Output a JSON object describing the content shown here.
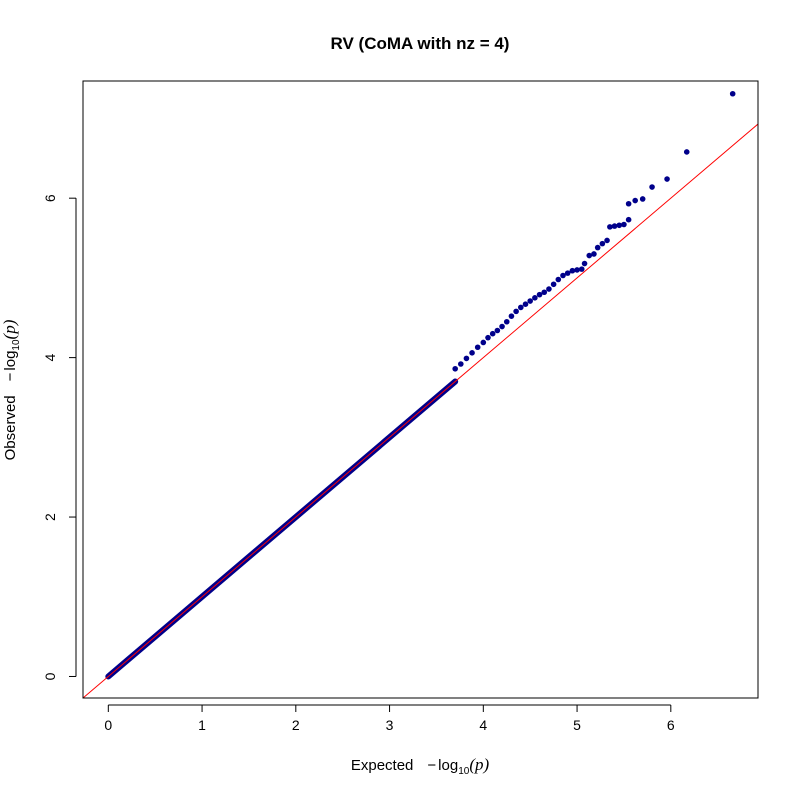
{
  "chart_data": {
    "type": "scatter",
    "title": "RV (CoMA with  nz = 4)",
    "xlabel": {
      "prefix": "Expected",
      "minus": "−",
      "log": "log",
      "base": "10",
      "open": "(",
      "var": "p",
      "close": ")"
    },
    "ylabel": {
      "prefix": "Observed",
      "minus": "−",
      "log": "log",
      "base": "10",
      "open": "(",
      "var": "p",
      "close": ")"
    },
    "xlim": [
      -0.27,
      6.93
    ],
    "ylim": [
      -0.27,
      7.47
    ],
    "x_ticks": [
      0,
      1,
      2,
      3,
      4,
      5,
      6
    ],
    "y_ticks": [
      0,
      2,
      4,
      6
    ],
    "point_color": "#00008B",
    "line_color": "#FF0000",
    "reference_line": {
      "intercept": 0,
      "slope": 1
    },
    "dense_segment": {
      "x_start": 0.0,
      "x_end": 3.7,
      "relation": "y = x"
    },
    "points": [
      [
        3.7,
        3.86
      ],
      [
        3.76,
        3.92
      ],
      [
        3.82,
        3.99
      ],
      [
        3.88,
        4.06
      ],
      [
        3.94,
        4.13
      ],
      [
        4.0,
        4.19
      ],
      [
        4.05,
        4.25
      ],
      [
        4.1,
        4.3
      ],
      [
        4.15,
        4.34
      ],
      [
        4.2,
        4.39
      ],
      [
        4.25,
        4.45
      ],
      [
        4.3,
        4.52
      ],
      [
        4.35,
        4.58
      ],
      [
        4.4,
        4.63
      ],
      [
        4.45,
        4.67
      ],
      [
        4.5,
        4.71
      ],
      [
        4.55,
        4.75
      ],
      [
        4.6,
        4.79
      ],
      [
        4.65,
        4.82
      ],
      [
        4.7,
        4.86
      ],
      [
        4.75,
        4.92
      ],
      [
        4.8,
        4.98
      ],
      [
        4.85,
        5.03
      ],
      [
        4.9,
        5.06
      ],
      [
        4.95,
        5.09
      ],
      [
        5.0,
        5.1
      ],
      [
        5.05,
        5.11
      ],
      [
        5.08,
        5.18
      ],
      [
        5.13,
        5.28
      ],
      [
        5.18,
        5.3
      ],
      [
        5.22,
        5.38
      ],
      [
        5.27,
        5.43
      ],
      [
        5.32,
        5.47
      ],
      [
        5.35,
        5.64
      ],
      [
        5.4,
        5.65
      ],
      [
        5.45,
        5.66
      ],
      [
        5.5,
        5.67
      ],
      [
        5.55,
        5.73
      ],
      [
        5.55,
        5.93
      ],
      [
        5.62,
        5.97
      ],
      [
        5.7,
        5.99
      ],
      [
        5.8,
        6.14
      ],
      [
        5.96,
        6.24
      ],
      [
        6.17,
        6.58
      ],
      [
        6.66,
        7.31
      ]
    ]
  }
}
